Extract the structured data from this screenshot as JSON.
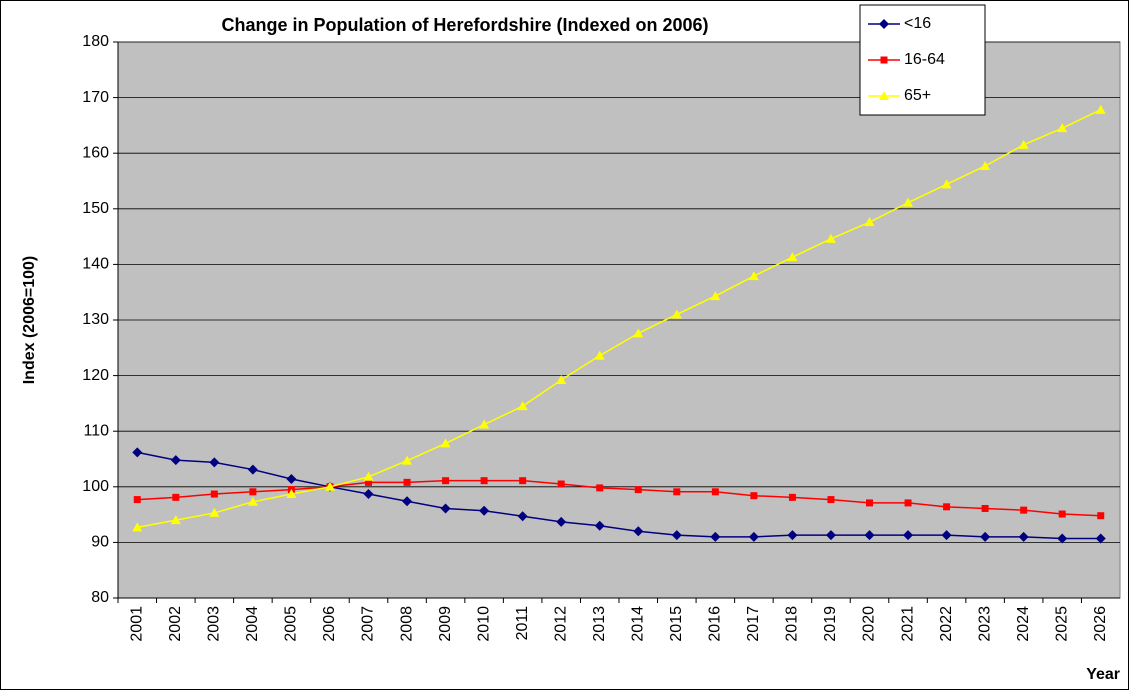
{
  "chart_data": {
    "type": "line",
    "title": "Change in Population of Herefordshire (Indexed on 2006)",
    "ylabel": "Index (2006=100)",
    "xlabel": "Year",
    "categories": [
      "2001",
      "2002",
      "2003",
      "2004",
      "2005",
      "2006",
      "2007",
      "2008",
      "2009",
      "2010",
      "2011",
      "2012",
      "2013",
      "2014",
      "2015",
      "2016",
      "2017",
      "2018",
      "2019",
      "2020",
      "2021",
      "2022",
      "2023",
      "2024",
      "2025",
      "2026"
    ],
    "series": [
      {
        "name": "<16",
        "color": "#000080",
        "marker": "diamond",
        "values": [
          106.2,
          104.8,
          104.4,
          103.1,
          101.4,
          100,
          98.7,
          97.4,
          96.1,
          95.7,
          94.7,
          93.7,
          93.0,
          92.0,
          91.3,
          91.0,
          91.0,
          91.3,
          91.3,
          91.3,
          91.3,
          91.3,
          91.0,
          91.0,
          90.7,
          90.7
        ]
      },
      {
        "name": "16-64",
        "color": "#ff0000",
        "marker": "square",
        "values": [
          97.7,
          98.1,
          98.7,
          99.1,
          99.5,
          100,
          100.8,
          100.8,
          101.1,
          101.1,
          101.1,
          100.5,
          99.8,
          99.5,
          99.1,
          99.1,
          98.4,
          98.1,
          97.7,
          97.1,
          97.1,
          96.4,
          96.1,
          95.8,
          95.1,
          94.8
        ]
      },
      {
        "name": "65+",
        "color": "#ffff00",
        "marker": "triangle",
        "values": [
          92.7,
          94.0,
          95.3,
          97.3,
          98.7,
          100,
          101.8,
          104.7,
          107.8,
          111.2,
          114.5,
          119.2,
          123.6,
          127.6,
          131.0,
          134.3,
          137.9,
          141.3,
          144.6,
          147.6,
          151.1,
          154.4,
          157.7,
          161.5,
          164.5,
          167.8
        ]
      }
    ],
    "ylim": [
      80,
      180
    ],
    "yticks": [
      80,
      90,
      100,
      110,
      120,
      130,
      140,
      150,
      160,
      170,
      180
    ],
    "grid": true,
    "legend": "top-right",
    "plot_background": "#c0c0c0"
  }
}
